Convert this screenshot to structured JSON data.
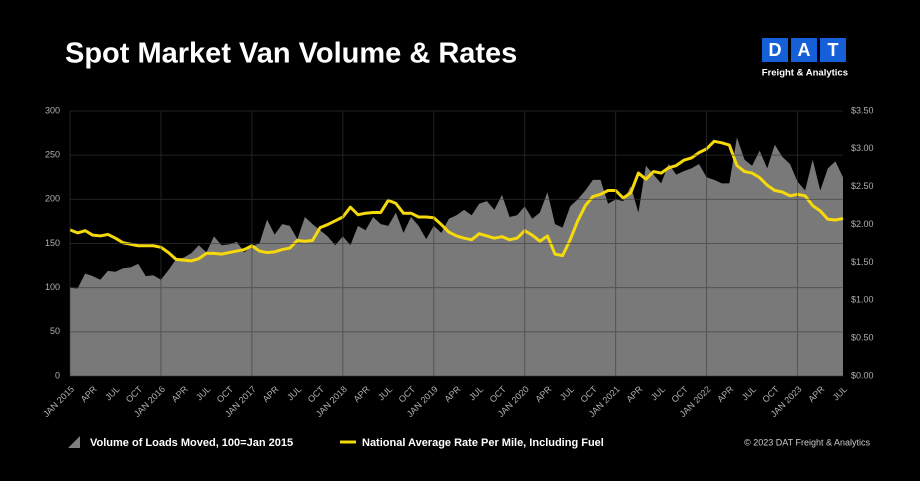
{
  "chart_data": {
    "type": "combo",
    "title": "Spot Market Van Volume & Rates",
    "logo": {
      "letters": [
        "D",
        "A",
        "T"
      ],
      "subtitle": "Freight & Analytics"
    },
    "copyright": "© 2023 DAT Freight & Analytics",
    "categories": [
      "JAN 2015",
      null,
      null,
      "APR",
      null,
      null,
      "JUL",
      null,
      null,
      "OCT",
      null,
      null,
      "JAN 2016",
      null,
      null,
      "APR",
      null,
      null,
      "JUL",
      null,
      null,
      "OCT",
      null,
      null,
      "JAN 2017",
      null,
      null,
      "APR",
      null,
      null,
      "JUL",
      null,
      null,
      "OCT",
      null,
      null,
      "JAN 2018",
      null,
      null,
      "APR",
      null,
      null,
      "JUL",
      null,
      null,
      "OCT",
      null,
      null,
      "JAN 2019",
      null,
      null,
      "APR",
      null,
      null,
      "JUL",
      null,
      null,
      "OCT",
      null,
      null,
      "JAN 2020",
      null,
      null,
      "APR",
      null,
      null,
      "JUL",
      null,
      null,
      "OCT",
      null,
      null,
      "JAN 2021",
      null,
      null,
      "APR",
      null,
      null,
      "JUL",
      null,
      null,
      "OCT",
      null,
      null,
      "JAN 2022",
      null,
      null,
      "APR",
      null,
      null,
      "JUL",
      null,
      null,
      "OCT",
      null,
      null,
      "JAN 2023",
      null,
      null,
      "APR",
      null,
      null,
      "JUL"
    ],
    "series": [
      {
        "name": "Volume of Loads Moved, 100=Jan 2015",
        "type": "area",
        "color": "#7f7f7f",
        "axis": "y",
        "values": [
          100,
          99,
          116,
          113,
          109,
          119,
          118,
          122,
          123,
          127,
          113,
          114,
          109,
          120,
          132,
          134,
          139,
          148,
          140,
          158,
          148,
          149,
          152,
          140,
          147,
          150,
          177,
          160,
          172,
          170,
          155,
          180,
          172,
          165,
          158,
          148,
          158,
          148,
          170,
          165,
          180,
          172,
          170,
          185,
          162,
          180,
          170,
          155,
          170,
          162,
          178,
          182,
          188,
          182,
          195,
          198,
          188,
          205,
          180,
          182,
          192,
          178,
          185,
          208,
          172,
          168,
          192,
          200,
          210,
          222,
          222,
          195,
          200,
          198,
          215,
          185,
          238,
          228,
          218,
          240,
          228,
          232,
          235,
          240,
          225,
          222,
          218,
          218,
          270,
          245,
          238,
          255,
          235,
          262,
          248,
          240,
          220,
          210,
          245,
          210,
          235,
          243,
          225
        ]
      },
      {
        "name": "National Average Rate Per Mile, Including Fuel",
        "type": "line",
        "color": "#f5d90a",
        "axis": "y2",
        "values": [
          1.93,
          1.89,
          1.92,
          1.86,
          1.85,
          1.87,
          1.82,
          1.76,
          1.74,
          1.72,
          1.72,
          1.72,
          1.7,
          1.63,
          1.54,
          1.53,
          1.52,
          1.55,
          1.62,
          1.62,
          1.61,
          1.63,
          1.65,
          1.67,
          1.72,
          1.65,
          1.63,
          1.64,
          1.67,
          1.69,
          1.79,
          1.78,
          1.79,
          1.96,
          2.0,
          2.05,
          2.1,
          2.23,
          2.13,
          2.15,
          2.16,
          2.16,
          2.32,
          2.28,
          2.15,
          2.15,
          2.1,
          2.1,
          2.09,
          2.0,
          1.9,
          1.85,
          1.82,
          1.8,
          1.88,
          1.85,
          1.82,
          1.84,
          1.8,
          1.82,
          1.92,
          1.86,
          1.78,
          1.85,
          1.61,
          1.59,
          1.8,
          2.05,
          2.25,
          2.37,
          2.4,
          2.45,
          2.45,
          2.35,
          2.42,
          2.68,
          2.6,
          2.7,
          2.68,
          2.75,
          2.78,
          2.85,
          2.88,
          2.95,
          3.0,
          3.1,
          3.08,
          3.05,
          2.78,
          2.7,
          2.68,
          2.62,
          2.52,
          2.45,
          2.43,
          2.38,
          2.4,
          2.38,
          2.25,
          2.18,
          2.07,
          2.06,
          2.08
        ]
      }
    ],
    "ylim": [
      0,
      300
    ],
    "yticks": [
      0,
      50,
      100,
      150,
      200,
      250,
      300
    ],
    "y2lim": [
      0,
      3.5
    ],
    "y2ticks": [
      {
        "value": 0,
        "label": "$0.00"
      },
      {
        "value": 0.5,
        "label": "$0.50"
      },
      {
        "value": 1,
        "label": "$1.00"
      },
      {
        "value": 1.5,
        "label": "$1.50"
      },
      {
        "value": 2,
        "label": "$2.00"
      },
      {
        "value": 2.5,
        "label": "$2.50"
      },
      {
        "value": 3,
        "label": "$3.00"
      },
      {
        "value": 3.5,
        "label": "$3.50"
      }
    ],
    "grid": true
  }
}
